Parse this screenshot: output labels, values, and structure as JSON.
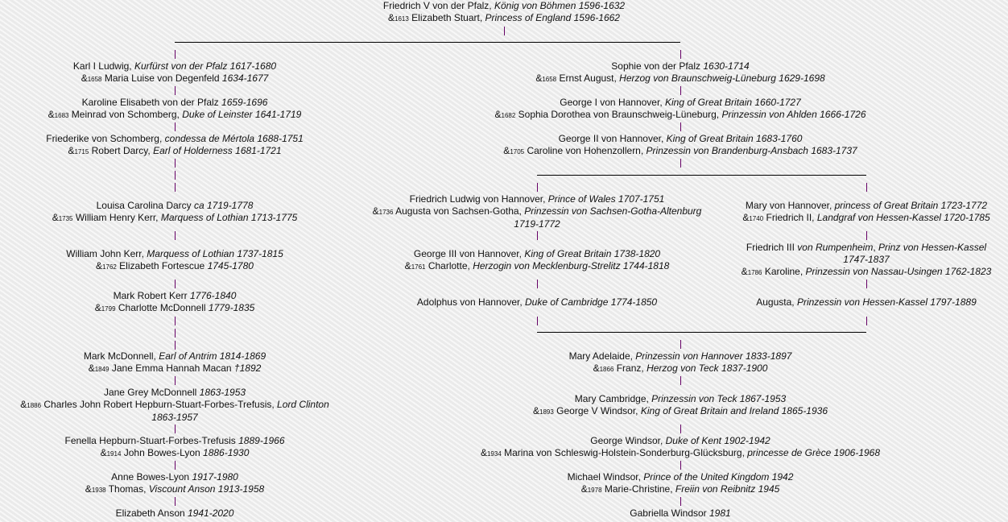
{
  "colors": {
    "connector": "#660066",
    "sibling_line": "#000000",
    "background": "#efefef"
  },
  "nodes": [
    {
      "id": "root",
      "lines": [
        [
          [
            "Friedrich V von der Pfalz, ",
            "n"
          ],
          [
            "König von Böhmen 1596-1632",
            "i"
          ]
        ],
        [
          [
            "&",
            "n"
          ],
          [
            "1613",
            "s"
          ],
          [
            " Elizabeth Stuart, ",
            "n"
          ],
          [
            "Princess of England 1596-1662",
            "i"
          ]
        ]
      ]
    },
    {
      "id": "karl",
      "lines": [
        [
          [
            "Karl I Ludwig, ",
            "n"
          ],
          [
            "Kurfürst von der Pfalz 1617-1680",
            "i"
          ]
        ],
        [
          [
            "&",
            "n"
          ],
          [
            "1658",
            "s"
          ],
          [
            " Maria Luise von Degenfeld ",
            "n"
          ],
          [
            "1634-1677",
            "i"
          ]
        ]
      ]
    },
    {
      "id": "karoline",
      "lines": [
        [
          [
            "Karoline Elisabeth von der Pfalz ",
            "n"
          ],
          [
            "1659-1696",
            "i"
          ]
        ],
        [
          [
            "&",
            "n"
          ],
          [
            "1683",
            "s"
          ],
          [
            " Meinrad von Schomberg, ",
            "n"
          ],
          [
            "Duke of Leinster 1641-1719",
            "i"
          ]
        ]
      ]
    },
    {
      "id": "friederike",
      "lines": [
        [
          [
            "Friederike von Schomberg, ",
            "n"
          ],
          [
            "condessa de Mértola 1688-1751",
            "i"
          ]
        ],
        [
          [
            "&",
            "n"
          ],
          [
            "1715",
            "s"
          ],
          [
            " Robert Darcy, ",
            "n"
          ],
          [
            "Earl of Holderness 1681-1721",
            "i"
          ]
        ]
      ]
    },
    {
      "id": "louisa",
      "lines": [
        [
          [
            "Louisa Carolina Darcy ",
            "n"
          ],
          [
            "ca 1719-1778",
            "i"
          ]
        ],
        [
          [
            "&",
            "n"
          ],
          [
            "1735",
            "s"
          ],
          [
            " William Henry Kerr, ",
            "n"
          ],
          [
            "Marquess of Lothian 1713-1775",
            "i"
          ]
        ]
      ]
    },
    {
      "id": "william",
      "lines": [
        [
          [
            "William John Kerr, ",
            "n"
          ],
          [
            "Marquess of Lothian 1737-1815",
            "i"
          ]
        ],
        [
          [
            "&",
            "n"
          ],
          [
            "1762",
            "s"
          ],
          [
            " Elizabeth Fortescue ",
            "n"
          ],
          [
            "1745-1780",
            "i"
          ]
        ]
      ]
    },
    {
      "id": "markrobert",
      "lines": [
        [
          [
            "Mark Robert Kerr ",
            "n"
          ],
          [
            "1776-1840",
            "i"
          ]
        ],
        [
          [
            "&",
            "n"
          ],
          [
            "1799",
            "s"
          ],
          [
            " Charlotte McDonnell ",
            "n"
          ],
          [
            "1779-1835",
            "i"
          ]
        ]
      ]
    },
    {
      "id": "markmcd",
      "lines": [
        [
          [
            "Mark McDonnell, ",
            "n"
          ],
          [
            "Earl of Antrim 1814-1869",
            "i"
          ]
        ],
        [
          [
            "&",
            "n"
          ],
          [
            "1849",
            "s"
          ],
          [
            " Jane Emma Hannah Macan ",
            "n"
          ],
          [
            "†1892",
            "i"
          ]
        ]
      ]
    },
    {
      "id": "janegrey",
      "lines": [
        [
          [
            "Jane Grey McDonnell ",
            "n"
          ],
          [
            "1863-1953",
            "i"
          ]
        ],
        [
          [
            "&",
            "n"
          ],
          [
            "1886",
            "s"
          ],
          [
            " Charles John Robert Hepburn-Stuart-Forbes-Trefusis, ",
            "n"
          ],
          [
            "Lord Clinton",
            "i"
          ]
        ],
        [
          [
            "1863-1957",
            "i"
          ]
        ]
      ]
    },
    {
      "id": "fenella",
      "lines": [
        [
          [
            "Fenella Hepburn-Stuart-Forbes-Trefusis ",
            "n"
          ],
          [
            "1889-1966",
            "i"
          ]
        ],
        [
          [
            "&",
            "n"
          ],
          [
            "1914",
            "s"
          ],
          [
            " John Bowes-Lyon ",
            "n"
          ],
          [
            "1886-1930",
            "i"
          ]
        ]
      ]
    },
    {
      "id": "anne",
      "lines": [
        [
          [
            "Anne Bowes-Lyon ",
            "n"
          ],
          [
            "1917-1980",
            "i"
          ]
        ],
        [
          [
            "&",
            "n"
          ],
          [
            "1938",
            "s"
          ],
          [
            " Thomas, ",
            "n"
          ],
          [
            "Viscount Anson 1913-1958",
            "i"
          ]
        ]
      ]
    },
    {
      "id": "elizabeth",
      "lines": [
        [
          [
            "Elizabeth Anson ",
            "n"
          ],
          [
            "1941-2020",
            "i"
          ]
        ]
      ]
    },
    {
      "id": "sophie",
      "lines": [
        [
          [
            "Sophie von der Pfalz ",
            "n"
          ],
          [
            "1630-1714",
            "i"
          ]
        ],
        [
          [
            "&",
            "n"
          ],
          [
            "1658",
            "s"
          ],
          [
            " Ernst August, ",
            "n"
          ],
          [
            "Herzog von Braunschweig-Lüneburg 1629-1698",
            "i"
          ]
        ]
      ]
    },
    {
      "id": "george1",
      "lines": [
        [
          [
            "George I von Hannover, ",
            "n"
          ],
          [
            "King of Great Britain 1660-1727",
            "i"
          ]
        ],
        [
          [
            "&",
            "n"
          ],
          [
            "1682",
            "s"
          ],
          [
            " Sophia Dorothea von Braunschweig-Lüneburg, ",
            "n"
          ],
          [
            "Prinzessin von Ahlden 1666-1726",
            "i"
          ]
        ]
      ]
    },
    {
      "id": "george2",
      "lines": [
        [
          [
            "George II von Hannover, ",
            "n"
          ],
          [
            "King of Great Britain 1683-1760",
            "i"
          ]
        ],
        [
          [
            "&",
            "n"
          ],
          [
            "1705",
            "s"
          ],
          [
            " Caroline von Hohenzollern, ",
            "n"
          ],
          [
            "Prinzessin von Brandenburg-Ansbach 1683-1737",
            "i"
          ]
        ]
      ]
    },
    {
      "id": "friedrichludwig",
      "lines": [
        [
          [
            "Friedrich Ludwig von Hannover, ",
            "n"
          ],
          [
            "Prince of Wales 1707-1751",
            "i"
          ]
        ],
        [
          [
            "&",
            "n"
          ],
          [
            "1736",
            "s"
          ],
          [
            " Augusta von Sachsen-Gotha, ",
            "n"
          ],
          [
            "Prinzessin von Sachsen-Gotha-Altenburg",
            "i"
          ]
        ],
        [
          [
            "1719-1772",
            "i"
          ]
        ]
      ]
    },
    {
      "id": "george3",
      "lines": [
        [
          [
            "George III von Hannover, ",
            "n"
          ],
          [
            "King of Great Britain 1738-1820",
            "i"
          ]
        ],
        [
          [
            "&",
            "n"
          ],
          [
            "1761",
            "s"
          ],
          [
            " Charlotte, ",
            "n"
          ],
          [
            "Herzogin von Mecklenburg-Strelitz 1744-1818",
            "i"
          ]
        ]
      ]
    },
    {
      "id": "adolphus",
      "lines": [
        [
          [
            "Adolphus von Hannover, ",
            "n"
          ],
          [
            "Duke of Cambridge 1774-1850",
            "i"
          ]
        ]
      ]
    },
    {
      "id": "mary",
      "lines": [
        [
          [
            "Mary von Hannover, ",
            "n"
          ],
          [
            "princess of Great Britain 1723-1772",
            "i"
          ]
        ],
        [
          [
            "&",
            "n"
          ],
          [
            "1740",
            "s"
          ],
          [
            " Friedrich II, ",
            "n"
          ],
          [
            "Landgraf von Hessen-Kassel 1720-1785",
            "i"
          ]
        ]
      ]
    },
    {
      "id": "friedrich3",
      "lines": [
        [
          [
            "Friedrich III ",
            "n"
          ],
          [
            "von Rumpenheim",
            "i"
          ],
          [
            ", ",
            "n"
          ],
          [
            "Prinz von Hessen-Kassel",
            "i"
          ]
        ],
        [
          [
            "1747-1837",
            "i"
          ]
        ],
        [
          [
            "&",
            "n"
          ],
          [
            "1786",
            "s"
          ],
          [
            " Karoline, ",
            "n"
          ],
          [
            "Prinzessin von Nassau-Usingen 1762-1823",
            "i"
          ]
        ]
      ]
    },
    {
      "id": "augusta",
      "lines": [
        [
          [
            "Augusta, ",
            "n"
          ],
          [
            "Prinzessin von Hessen-Kassel 1797-1889",
            "i"
          ]
        ]
      ]
    },
    {
      "id": "maryadelaide",
      "lines": [
        [
          [
            "Mary Adelaide, ",
            "n"
          ],
          [
            "Prinzessin von Hannover 1833-1897",
            "i"
          ]
        ],
        [
          [
            "&",
            "n"
          ],
          [
            "1866",
            "s"
          ],
          [
            " Franz, ",
            "n"
          ],
          [
            "Herzog von Teck 1837-1900",
            "i"
          ]
        ]
      ]
    },
    {
      "id": "marycambridge",
      "lines": [
        [
          [
            "Mary Cambridge, ",
            "n"
          ],
          [
            "Prinzessin von Teck 1867-1953",
            "i"
          ]
        ],
        [
          [
            "&",
            "n"
          ],
          [
            "1893",
            "s"
          ],
          [
            " George V Windsor, ",
            "n"
          ],
          [
            "King of Great Britain and Ireland 1865-1936",
            "i"
          ]
        ]
      ]
    },
    {
      "id": "georgewindsor",
      "lines": [
        [
          [
            "George Windsor, ",
            "n"
          ],
          [
            "Duke of Kent 1902-1942",
            "i"
          ]
        ],
        [
          [
            "&",
            "n"
          ],
          [
            "1934",
            "s"
          ],
          [
            " Marina von Schleswig-Holstein-Sonderburg-Glücksburg, ",
            "n"
          ],
          [
            "princesse de Grèce 1906-1968",
            "i"
          ]
        ]
      ]
    },
    {
      "id": "michael",
      "lines": [
        [
          [
            "Michael Windsor, ",
            "n"
          ],
          [
            "Prince of the United Kingdom 1942",
            "i"
          ]
        ],
        [
          [
            "&",
            "n"
          ],
          [
            "1978",
            "s"
          ],
          [
            " Marie-Christine, ",
            "n"
          ],
          [
            "Freiin von Reibnitz 1945",
            "i"
          ]
        ]
      ]
    },
    {
      "id": "gabriella",
      "lines": [
        [
          [
            "Gabriella Windsor ",
            "n"
          ],
          [
            "1981",
            "i"
          ]
        ]
      ]
    }
  ]
}
